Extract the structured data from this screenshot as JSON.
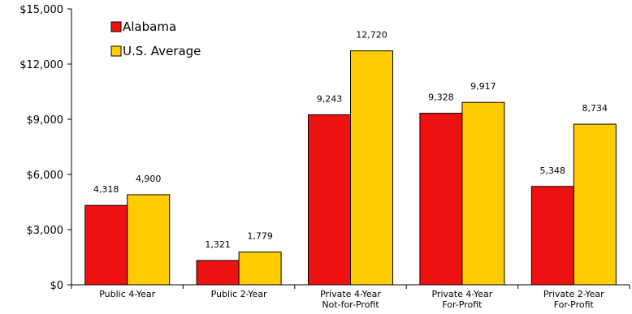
{
  "chart_data": {
    "type": "bar",
    "categories": [
      [
        "Public 4-Year"
      ],
      [
        "Public 2-Year"
      ],
      [
        "Private 4-Year",
        "Not-for-Profit"
      ],
      [
        "Private 4-Year",
        "For-Profit"
      ],
      [
        "Private 2-Year",
        "For-Profit"
      ]
    ],
    "series": [
      {
        "name": "Alabama",
        "color": "#ee1111",
        "values": [
          4318,
          1321,
          9243,
          9328,
          5348
        ],
        "labels": [
          "4,318",
          "1,321",
          "9,243",
          "9,328",
          "5,348"
        ]
      },
      {
        "name": "U.S. Average",
        "color": "#ffcc00",
        "values": [
          4900,
          1779,
          12720,
          9917,
          8734
        ],
        "labels": [
          "4,900",
          "1,779",
          "12,720",
          "9,917",
          "8,734"
        ]
      }
    ],
    "ylim": [
      0,
      15000
    ],
    "yticks": [
      0,
      3000,
      6000,
      9000,
      12000,
      15000
    ],
    "ytick_labels": [
      "$0",
      "$3,000",
      "$6,000",
      "$9,000",
      "$12,000",
      "$15,000"
    ],
    "legend_position": "top-left",
    "grid": false
  }
}
